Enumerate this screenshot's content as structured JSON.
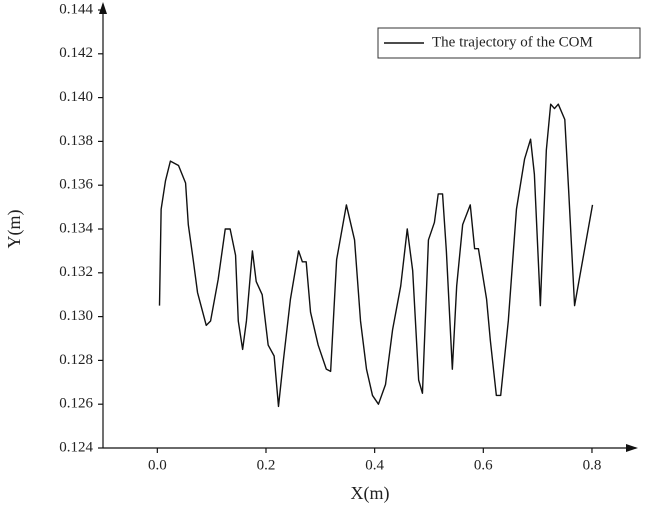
{
  "chart_data": {
    "type": "line",
    "x_label": "X(m)",
    "y_label": "Y(m)",
    "xlim": [
      -0.1,
      0.87
    ],
    "ylim": [
      0.124,
      0.144
    ],
    "xticks": [
      {
        "value": 0,
        "label": "0.0"
      },
      0.2,
      0.4,
      0.6,
      0.8
    ],
    "yticks": [
      0.124,
      0.126,
      0.128,
      {
        "value": 0.13,
        "label": "0.130"
      },
      0.132,
      0.134,
      0.136,
      0.138,
      {
        "value": 0.14,
        "label": "0.140"
      },
      0.142,
      0.144
    ],
    "legend": "upper right",
    "grid": false,
    "x": [
      0.004,
      0.007,
      0.015,
      0.024,
      0.039,
      0.052,
      0.057,
      0.066,
      0.074,
      0.09,
      0.098,
      0.112,
      0.125,
      0.134,
      0.144,
      0.149,
      0.157,
      0.164,
      0.175,
      0.182,
      0.193,
      0.204,
      0.215,
      0.223,
      0.232,
      0.245,
      0.26,
      0.267,
      0.274,
      0.282,
      0.296,
      0.311,
      0.319,
      0.33,
      0.348,
      0.363,
      0.374,
      0.385,
      0.396,
      0.407,
      0.42,
      0.433,
      0.448,
      0.46,
      0.47,
      0.481,
      0.488,
      0.499,
      0.51,
      0.517,
      0.525,
      0.532,
      0.543,
      0.551,
      0.562,
      0.576,
      0.584,
      0.591,
      0.606,
      0.613,
      0.624,
      0.632,
      0.646,
      0.661,
      0.676,
      0.687,
      0.694,
      0.705,
      0.716,
      0.724,
      0.731,
      0.738,
      0.75,
      0.757,
      0.768,
      0.801
    ],
    "series": [
      {
        "name": "The trajectory of the COM",
        "color": "#111111",
        "values": [
          0.1305,
          0.1349,
          0.1362,
          0.1371,
          0.1369,
          0.1361,
          0.1342,
          0.1326,
          0.1311,
          0.1296,
          0.1298,
          0.1317,
          0.134,
          0.134,
          0.1328,
          0.1298,
          0.1285,
          0.1298,
          0.133,
          0.1316,
          0.131,
          0.1287,
          0.1282,
          0.1259,
          0.128,
          0.1308,
          0.133,
          0.1325,
          0.1325,
          0.1302,
          0.1287,
          0.1276,
          0.1275,
          0.1326,
          0.1351,
          0.1335,
          0.1298,
          0.1276,
          0.1264,
          0.126,
          0.1269,
          0.1294,
          0.1314,
          0.134,
          0.1321,
          0.1271,
          0.1265,
          0.1335,
          0.1343,
          0.1356,
          0.1356,
          0.133,
          0.1276,
          0.1314,
          0.1342,
          0.1351,
          0.1331,
          0.1331,
          0.1308,
          0.1289,
          0.1264,
          0.1264,
          0.1298,
          0.1349,
          0.1372,
          0.1381,
          0.1365,
          0.1305,
          0.1376,
          0.1397,
          0.1395,
          0.1397,
          0.139,
          0.1358,
          0.1305,
          0.1351
        ]
      }
    ]
  }
}
